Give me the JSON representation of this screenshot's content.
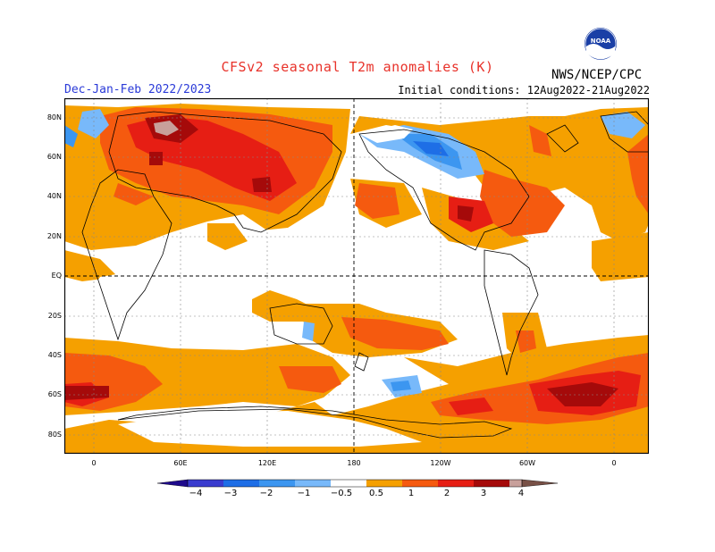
{
  "header": {
    "title": "CFSv2 seasonal T2m anomalies (K)",
    "period": "Dec-Jan-Feb 2022/2023",
    "initial_conditions": "Initial conditions: 12Aug2022-21Aug2022",
    "agency": "NWS/NCEP/CPC",
    "logo_text": "NOAA"
  },
  "map": {
    "lat_ticks": [
      "80N",
      "60N",
      "40N",
      "20N",
      "EQ",
      "20S",
      "40S",
      "60S",
      "80S"
    ],
    "lon_ticks": [
      "0",
      "60E",
      "120E",
      "180",
      "120W",
      "60W",
      "0"
    ],
    "colors": {
      "cold_extreme": "#1e0a8c",
      "cold_4": "#3a3ccf",
      "cold_3": "#1e6ee6",
      "cold_2": "#3c96f0",
      "cold_1": "#78b9fa",
      "neutral": "#ffffff",
      "warm_05": "#f5a000",
      "warm_1": "#f55a0f",
      "warm_2": "#e61e14",
      "warm_3": "#a50a0a",
      "warm_4": "#c8a09b",
      "warm_extreme": "#785046"
    }
  },
  "colorbar": {
    "labels": [
      "−4",
      "−3",
      "−2",
      "−1",
      "−0.5",
      "0.5",
      "1",
      "2",
      "3",
      "4"
    ]
  }
}
